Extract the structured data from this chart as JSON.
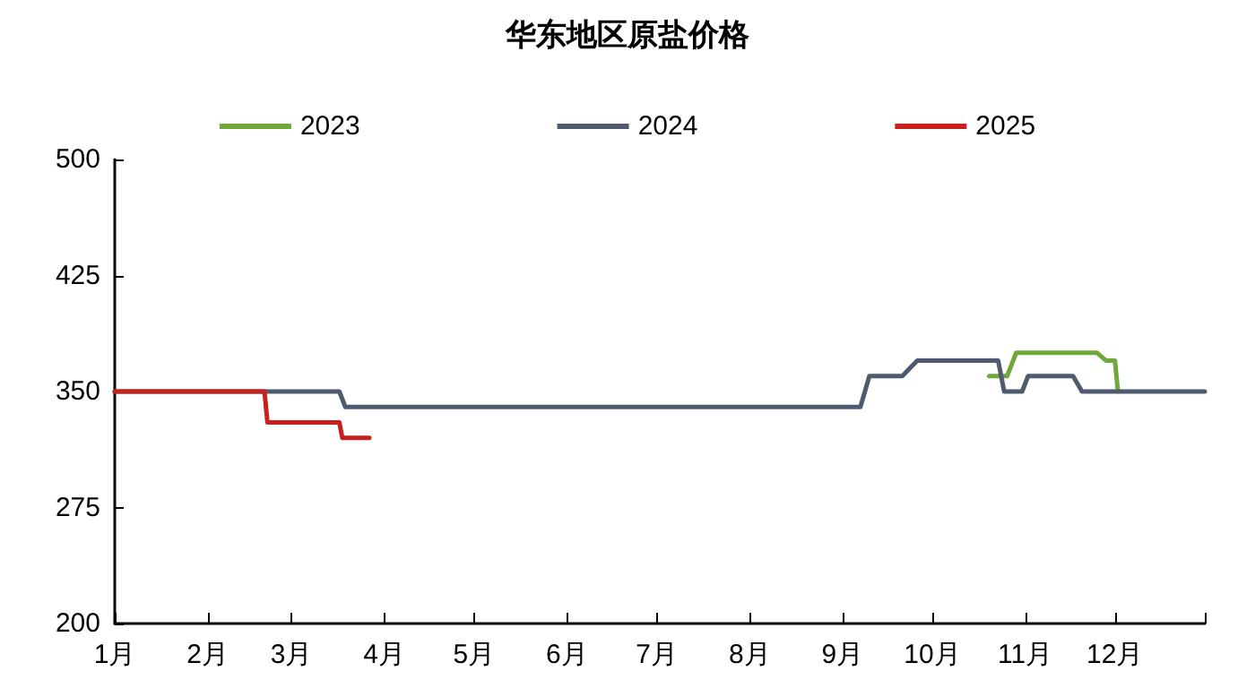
{
  "chart_data": {
    "type": "line",
    "title": "华东地区原盐价格",
    "series": [
      {
        "name": "2023",
        "color": "#70a83a",
        "x": [
          "--10-20",
          "--10-26",
          "--10-29",
          "--11-25",
          "--11-28",
          "--12-01",
          "--12-02"
        ],
        "values": [
          360,
          360,
          375,
          375,
          370,
          370,
          350
        ]
      },
      {
        "name": "2024",
        "color": "#4f5a6e",
        "x": [
          "--01-01",
          "--03-17",
          "--03-19",
          "--09-07",
          "--09-10",
          "--09-21",
          "--09-26",
          "--10-23",
          "--10-25",
          "--10-31",
          "--11-02",
          "--11-17",
          "--11-20",
          "--12-31"
        ],
        "values": [
          350,
          350,
          340,
          340,
          360,
          360,
          370,
          370,
          350,
          350,
          360,
          360,
          350,
          350
        ]
      },
      {
        "name": "2025",
        "color": "#c8201e",
        "x": [
          "--01-01",
          "--02-20",
          "--02-21",
          "--03-17",
          "--03-18",
          "--03-27"
        ],
        "values": [
          350,
          350,
          330,
          330,
          320,
          320
        ]
      }
    ],
    "xlim": [
      "--01-01",
      "--12-31"
    ],
    "xticks": [
      {
        "value": "--01-01",
        "label": "1月"
      },
      {
        "value": "--02-01",
        "label": "2月"
      },
      {
        "value": "--03-01",
        "label": "3月"
      },
      {
        "value": "--04-01",
        "label": "4月"
      },
      {
        "value": "--05-01",
        "label": "5月"
      },
      {
        "value": "--06-01",
        "label": "6月"
      },
      {
        "value": "--07-01",
        "label": "7月"
      },
      {
        "value": "--08-01",
        "label": "8月"
      },
      {
        "value": "--09-01",
        "label": "9月"
      },
      {
        "value": "--10-01",
        "label": "10月"
      },
      {
        "value": "--11-01",
        "label": "11月"
      },
      {
        "value": "--12-01",
        "label": "12月"
      },
      {
        "value": "--12-31",
        "label": null
      }
    ],
    "ylim": [
      200,
      500
    ],
    "yticks": [
      200,
      275,
      350,
      425,
      500
    ],
    "grid": false,
    "legend": "top",
    "marker": "none",
    "line_style": "solid"
  }
}
